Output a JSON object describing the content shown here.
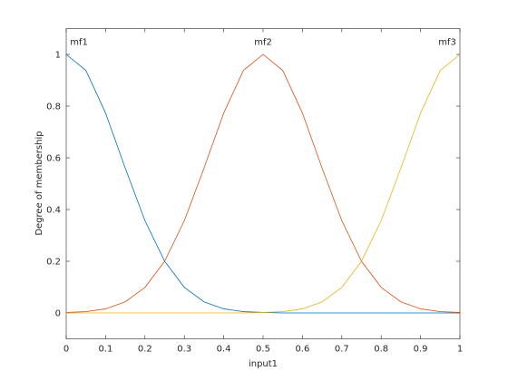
{
  "chart_data": {
    "type": "line",
    "x": [
      0,
      0.05,
      0.1,
      0.15,
      0.2,
      0.25,
      0.3,
      0.35,
      0.4,
      0.45,
      0.5,
      0.55,
      0.6,
      0.65,
      0.7,
      0.75,
      0.8,
      0.85,
      0.9,
      0.95,
      1
    ],
    "series": [
      {
        "name": "mf1",
        "color": "#0072bd",
        "values": [
          1,
          0.938,
          0.773,
          0.56,
          0.357,
          0.2,
          0.099,
          0.043,
          0.016,
          0.005,
          0.002,
          0,
          0,
          0,
          0,
          0,
          0,
          0,
          0,
          0,
          0
        ]
      },
      {
        "name": "mf2",
        "color": "#d95319",
        "values": [
          0.002,
          0.005,
          0.016,
          0.043,
          0.099,
          0.2,
          0.357,
          0.56,
          0.773,
          0.938,
          1,
          0.938,
          0.773,
          0.56,
          0.357,
          0.2,
          0.099,
          0.043,
          0.016,
          0.005,
          0.002
        ]
      },
      {
        "name": "mf3",
        "color": "#edb120",
        "values": [
          0,
          0,
          0,
          0,
          0,
          0,
          0,
          0,
          0,
          0,
          0.002,
          0.005,
          0.016,
          0.043,
          0.099,
          0.2,
          0.357,
          0.56,
          0.773,
          0.938,
          1
        ]
      }
    ],
    "x_label": "input1",
    "y_label": "Degree of membership",
    "xlim": [
      0,
      1
    ],
    "xticks": [
      0,
      0.1,
      0.2,
      0.3,
      0.4,
      0.5,
      0.6,
      0.7,
      0.8,
      0.9,
      1
    ],
    "ylim": [
      -0.1,
      1.1
    ],
    "yticks": [
      0,
      0.2,
      0.4,
      0.6,
      0.8,
      1
    ],
    "grid": false
  }
}
